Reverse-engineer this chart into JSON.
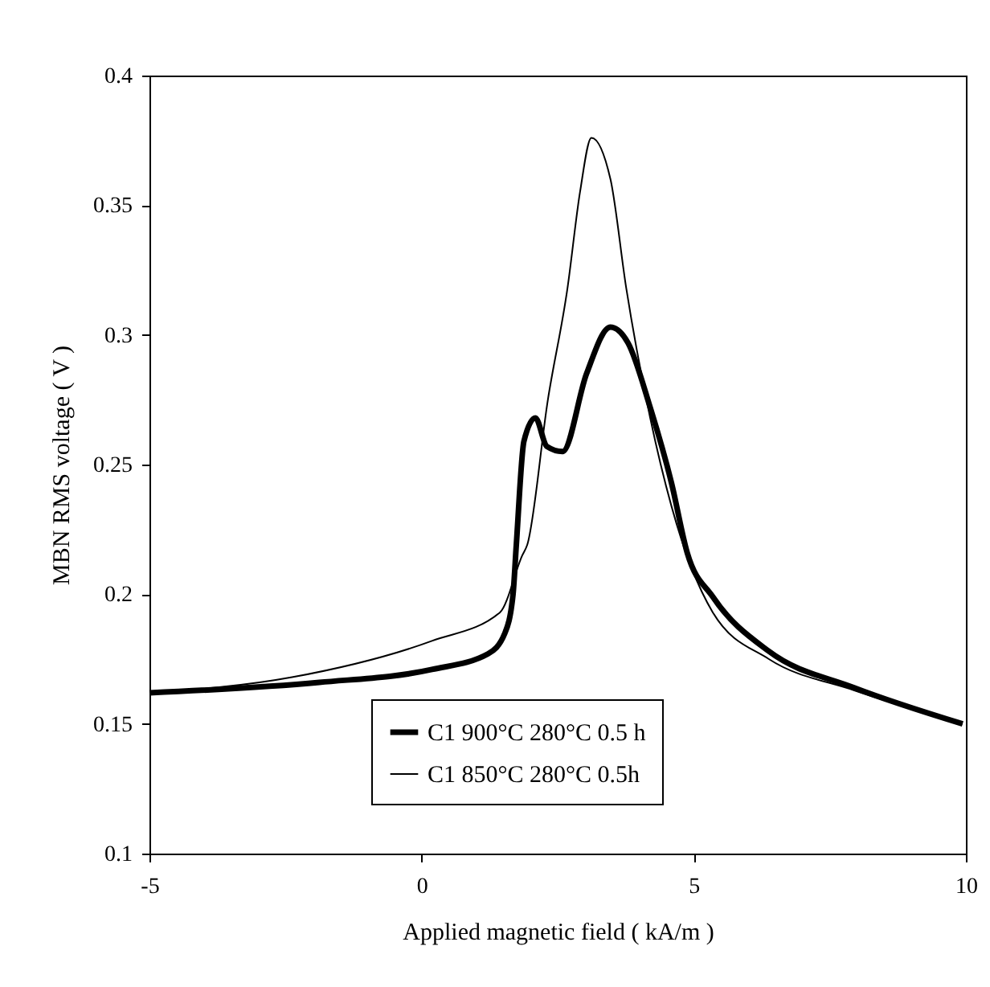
{
  "chart_data": {
    "type": "line",
    "xlabel": "Applied magnetic field ( kA/m )",
    "ylabel": "MBN RMS voltage ( V )",
    "xlim": [
      -5,
      10
    ],
    "xticks": [
      -5,
      0,
      5,
      10
    ],
    "ylim": [
      0.1,
      0.4
    ],
    "yticks": [
      0.1,
      0.15,
      0.2,
      0.25,
      0.3,
      0.35,
      0.4
    ],
    "grid": false,
    "legend": "bottom",
    "line_style": "solid",
    "marker": "none",
    "series": [
      {
        "name": "C1 900°C 280°C 0.5 h",
        "color": "#000000",
        "x": [
          -5,
          -1.88,
          0.19,
          1.22,
          1.53,
          1.68,
          1.74,
          1.88,
          2.09,
          2.3,
          2.59,
          3.03,
          3.47,
          3.79,
          4.2,
          4.59,
          4.88,
          5.35,
          6.38,
          7.94,
          9.94
        ],
        "values": [
          0.162,
          0.166,
          0.171,
          0.177,
          0.185,
          0.2,
          0.219,
          0.259,
          0.268,
          0.257,
          0.255,
          0.285,
          0.303,
          0.297,
          0.272,
          0.243,
          0.216,
          0.199,
          0.178,
          0.164,
          0.15
        ]
      },
      {
        "name": "C1 850°C 280°C 0.5h",
        "color": "#000000",
        "x": [
          -5,
          -2.38,
          0.19,
          1.44,
          1.85,
          1.94,
          2.32,
          2.68,
          2.91,
          3.12,
          3.47,
          3.76,
          4.2,
          4.59,
          5.35,
          6.38,
          7.94,
          9.94
        ],
        "values": [
          0.162,
          0.168,
          0.182,
          0.193,
          0.215,
          0.219,
          0.275,
          0.318,
          0.355,
          0.376,
          0.36,
          0.318,
          0.268,
          0.234,
          0.193,
          0.175,
          0.163,
          0.15
        ]
      }
    ]
  }
}
